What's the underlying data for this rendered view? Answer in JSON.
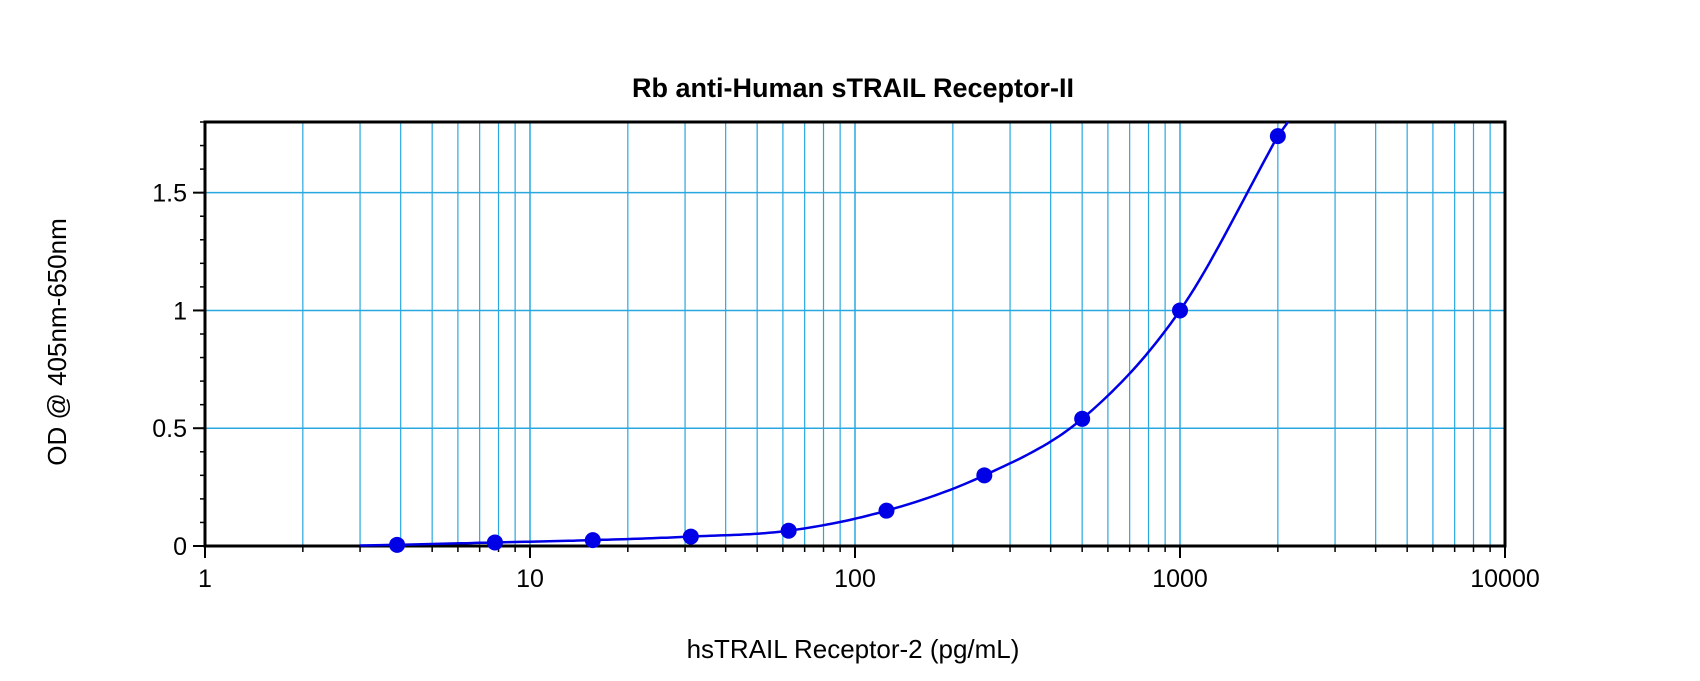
{
  "chart_data": {
    "type": "scatter",
    "title": "Rb anti-Human sTRAIL Receptor-II",
    "xlabel": "hsTRAIL Receptor-2 (pg/mL)",
    "ylabel": "OD @ 405nm-650nm",
    "x_scale": "log",
    "xlim": [
      1,
      10000
    ],
    "ylim": [
      0,
      1.8
    ],
    "x_ticks": [
      "1",
      "10",
      "100",
      "1000",
      "10000"
    ],
    "y_ticks": [
      "0",
      "0.5",
      "1",
      "1.5"
    ],
    "grid": true,
    "colors": {
      "grid": "#29a8e0",
      "series": "#0000e6",
      "axis": "#000000"
    },
    "series": [
      {
        "x": [
          3.9,
          7.8,
          15.6,
          31.25,
          62.5,
          125,
          250,
          500,
          1000,
          2000
        ],
        "y": [
          0.005,
          0.015,
          0.025,
          0.04,
          0.065,
          0.15,
          0.3,
          0.54,
          1.0,
          1.74
        ],
        "fit_line": true
      }
    ]
  }
}
